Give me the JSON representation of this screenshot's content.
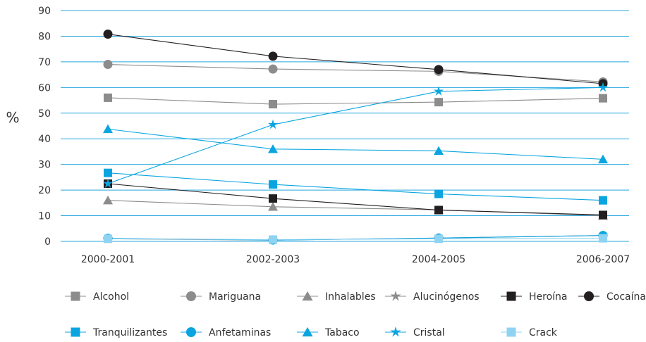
{
  "chart_data": {
    "type": "line",
    "title": "",
    "xlabel": "",
    "ylabel": "%",
    "categories": [
      "2000-2001",
      "2002-2003",
      "2004-2005",
      "2006-2007"
    ],
    "ylim": [
      0,
      90
    ],
    "yticks": [
      0,
      10,
      20,
      30,
      40,
      50,
      60,
      70,
      80,
      90
    ],
    "grid": "horizontal",
    "legend_position": "bottom",
    "series": [
      {
        "name": "Alcohol",
        "values": [
          56,
          53.5,
          54.3,
          55.8
        ],
        "color": "#8c8c8c",
        "marker": "square"
      },
      {
        "name": "Mariguana",
        "values": [
          69,
          67.2,
          66.3,
          62.2
        ],
        "color": "#8c8c8c",
        "marker": "circle"
      },
      {
        "name": "Inhalables",
        "values": [
          16,
          13.5,
          12.3,
          10
        ],
        "color": "#8c8c8c",
        "marker": "triangle"
      },
      {
        "name": "Alucinógenos",
        "values": [
          1,
          0.5,
          1.3,
          2.3
        ],
        "color": "#8c8c8c",
        "marker": "star"
      },
      {
        "name": "Heroína",
        "values": [
          22.5,
          16.7,
          12.2,
          10.3
        ],
        "color": "#231f20",
        "marker": "square"
      },
      {
        "name": "Cocaína",
        "values": [
          80.8,
          72.2,
          67,
          61.5
        ],
        "color": "#231f20",
        "marker": "circle"
      },
      {
        "name": "Tranquilizantes",
        "values": [
          26.7,
          22.2,
          18.5,
          16
        ],
        "color": "#0aa5e0",
        "marker": "square"
      },
      {
        "name": "Anfetaminas",
        "values": [
          1.2,
          0.5,
          1.3,
          2.3
        ],
        "color": "#0aa5e0",
        "marker": "circle"
      },
      {
        "name": "Tabaco",
        "values": [
          43.8,
          36,
          35.3,
          32
        ],
        "color": "#0aa5e0",
        "marker": "triangle"
      },
      {
        "name": "Cristal",
        "values": [
          22.5,
          45.5,
          58.5,
          60
        ],
        "color": "#0aa5e0",
        "marker": "star"
      },
      {
        "name": "Crack",
        "values": [
          1,
          0.7,
          1,
          1.2
        ],
        "color": "#8fd3f2",
        "marker": "square"
      }
    ]
  }
}
